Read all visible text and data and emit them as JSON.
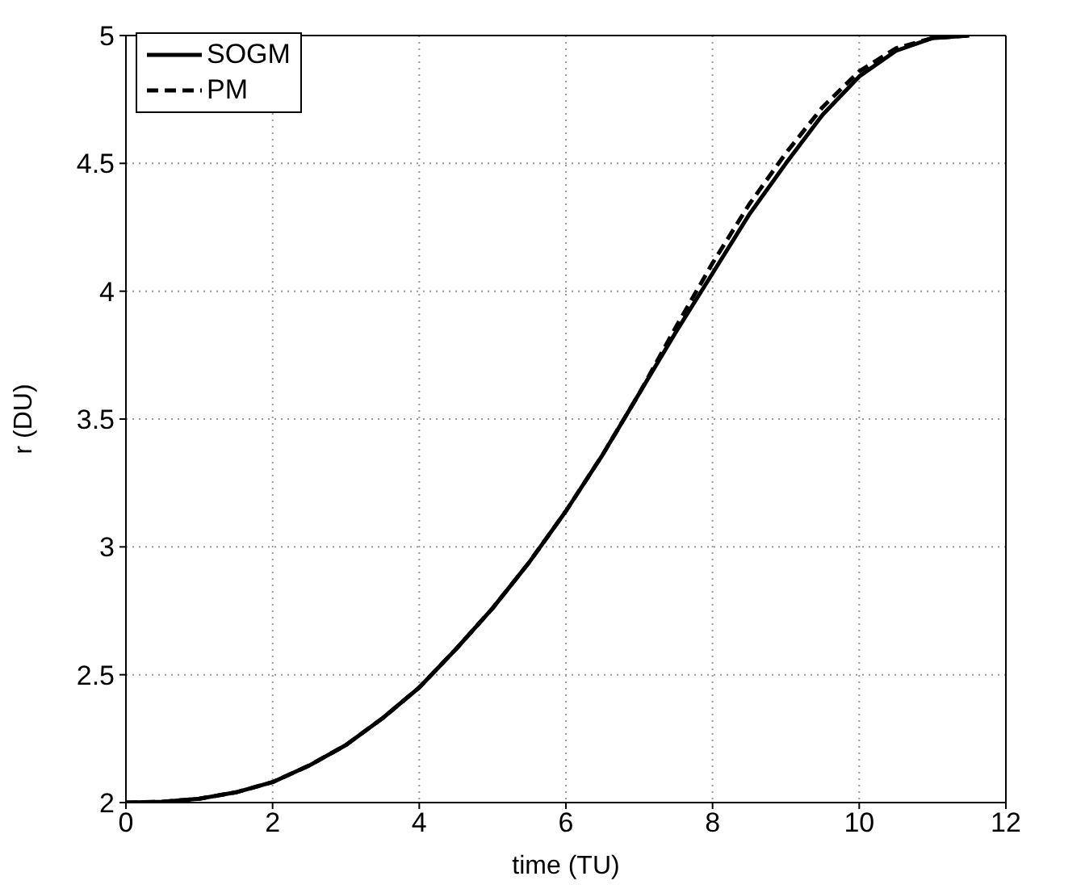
{
  "chart_data": {
    "type": "line",
    "xlabel": "time (TU)",
    "ylabel": "r (DU)",
    "x": [
      0,
      0.5,
      1,
      1.5,
      2,
      2.5,
      3,
      3.5,
      4,
      4.5,
      5,
      5.5,
      6,
      6.5,
      7,
      7.5,
      8,
      8.5,
      9,
      9.5,
      10,
      10.5,
      11,
      11.5
    ],
    "series": [
      {
        "name": "SOGM",
        "color": "#000000",
        "line_style": "solid",
        "values": [
          2,
          2.003,
          2.015,
          2.04,
          2.08,
          2.145,
          2.225,
          2.33,
          2.45,
          2.6,
          2.76,
          2.94,
          3.14,
          3.36,
          3.6,
          3.84,
          4.07,
          4.3,
          4.5,
          4.69,
          4.84,
          4.94,
          4.99,
          5
        ]
      },
      {
        "name": "PM",
        "color": "#000000",
        "line_style": "dashed",
        "values": [
          2,
          2.003,
          2.015,
          2.04,
          2.08,
          2.145,
          2.225,
          2.33,
          2.45,
          2.6,
          2.76,
          2.94,
          3.14,
          3.36,
          3.6,
          3.86,
          4.11,
          4.34,
          4.54,
          4.72,
          4.86,
          4.95,
          4.99,
          5
        ]
      }
    ],
    "xlim": [
      0,
      12
    ],
    "xticks": [
      0,
      2,
      4,
      6,
      8,
      10,
      12
    ],
    "ylim": [
      2,
      5
    ],
    "yticks": [
      2,
      2.5,
      3,
      3.5,
      4,
      4.5,
      5
    ],
    "grid": true,
    "legend": "top left",
    "marker": "none"
  }
}
